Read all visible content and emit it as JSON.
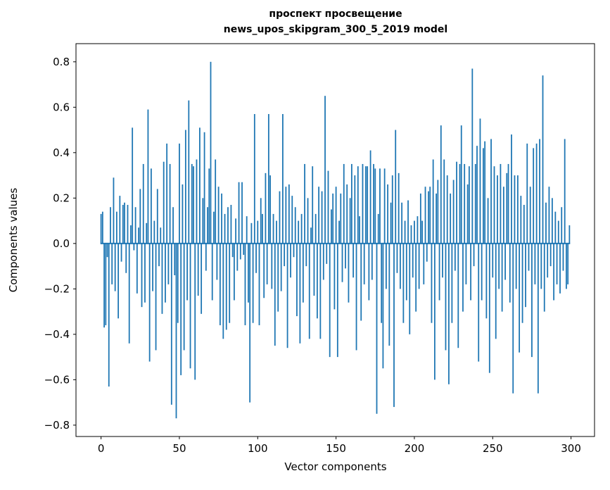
{
  "chart_data": {
    "type": "bar",
    "title": "проспект просвещение",
    "subtitle": "news_upos_skipgram_300_5_2019 model",
    "xlabel": "Vector components",
    "ylabel": "Components values",
    "bar_color": "#1f77b4",
    "spine_color": "#000000",
    "xlim": [
      -16,
      315
    ],
    "ylim": [
      -0.85,
      0.88
    ],
    "xticks": [
      0,
      50,
      100,
      150,
      200,
      250,
      300
    ],
    "yticks": [
      -0.8,
      -0.6,
      -0.4,
      -0.2,
      0.0,
      0.2,
      0.4,
      0.6,
      0.8
    ],
    "grid": false,
    "legend": "none",
    "x_start": 0,
    "x_step": 1,
    "values": [
      0.13,
      0.14,
      -0.37,
      -0.36,
      -0.06,
      -0.63,
      0.16,
      -0.18,
      0.29,
      -0.21,
      0.14,
      -0.33,
      0.21,
      -0.08,
      0.17,
      0.18,
      -0.13,
      0.17,
      -0.44,
      0.08,
      0.51,
      -0.03,
      0.16,
      -0.22,
      0.07,
      0.24,
      -0.28,
      0.35,
      -0.26,
      0.09,
      0.59,
      -0.52,
      0.33,
      -0.21,
      0.1,
      -0.47,
      0.24,
      -0.1,
      0.07,
      -0.31,
      0.36,
      -0.26,
      0.44,
      -0.18,
      0.35,
      -0.71,
      0.16,
      -0.14,
      -0.77,
      -0.35,
      0.44,
      -0.58,
      0.26,
      -0.47,
      0.5,
      -0.25,
      0.63,
      -0.55,
      0.35,
      0.34,
      -0.6,
      0.37,
      -0.23,
      0.51,
      -0.31,
      0.2,
      0.49,
      -0.12,
      0.16,
      0.33,
      0.8,
      -0.25,
      0.14,
      0.37,
      -0.16,
      0.25,
      -0.36,
      0.22,
      -0.42,
      0.13,
      -0.38,
      0.16,
      -0.35,
      0.17,
      -0.06,
      -0.25,
      0.11,
      -0.12,
      0.27,
      -0.07,
      0.27,
      -0.05,
      -0.36,
      0.12,
      -0.26,
      -0.7,
      0.09,
      -0.35,
      0.57,
      -0.13,
      0.1,
      -0.36,
      0.2,
      0.13,
      -0.24,
      0.31,
      -0.18,
      0.57,
      0.3,
      -0.2,
      0.13,
      -0.45,
      0.1,
      -0.3,
      0.23,
      -0.21,
      0.57,
      -0.1,
      0.25,
      -0.46,
      0.26,
      -0.15,
      0.21,
      -0.06,
      0.16,
      -0.32,
      0.1,
      -0.44,
      0.13,
      -0.26,
      0.35,
      -0.1,
      0.2,
      -0.42,
      0.07,
      0.34,
      -0.23,
      0.13,
      -0.33,
      0.25,
      -0.42,
      0.23,
      -0.16,
      0.65,
      -0.09,
      0.32,
      -0.5,
      0.15,
      0.22,
      -0.29,
      0.25,
      -0.5,
      0.1,
      0.22,
      -0.17,
      0.35,
      -0.11,
      0.26,
      -0.26,
      0.2,
      0.35,
      -0.15,
      0.3,
      -0.47,
      0.34,
      0.12,
      -0.34,
      0.35,
      -0.18,
      0.34,
      0.34,
      -0.25,
      0.41,
      -0.16,
      0.35,
      0.33,
      -0.75,
      0.13,
      0.33,
      -0.35,
      -0.55,
      0.33,
      -0.2,
      0.26,
      -0.45,
      0.18,
      0.3,
      -0.72,
      0.5,
      -0.13,
      0.31,
      -0.2,
      0.18,
      -0.35,
      0.1,
      -0.25,
      0.19,
      -0.4,
      0.08,
      -0.15,
      0.1,
      -0.3,
      0.12,
      -0.2,
      0.22,
      0.1,
      -0.18,
      0.25,
      -0.08,
      0.23,
      0.25,
      -0.35,
      0.37,
      -0.6,
      0.22,
      0.28,
      -0.25,
      0.52,
      -0.15,
      0.37,
      -0.47,
      0.3,
      -0.62,
      0.22,
      -0.35,
      0.28,
      -0.12,
      0.36,
      -0.46,
      0.35,
      0.52,
      -0.3,
      0.35,
      -0.18,
      0.26,
      0.34,
      -0.25,
      0.77,
      -0.1,
      0.35,
      0.43,
      -0.52,
      0.55,
      -0.25,
      0.42,
      0.45,
      -0.33,
      0.2,
      -0.57,
      0.46,
      -0.15,
      0.34,
      -0.42,
      0.3,
      -0.2,
      0.35,
      -0.3,
      0.25,
      -0.16,
      0.31,
      0.35,
      -0.26,
      0.48,
      -0.66,
      0.3,
      -0.2,
      0.3,
      -0.48,
      0.21,
      -0.35,
      0.17,
      -0.28,
      0.44,
      -0.12,
      0.25,
      -0.5,
      0.42,
      -0.18,
      0.44,
      -0.66,
      0.46,
      -0.2,
      0.74,
      -0.3,
      0.18,
      -0.15,
      0.25,
      -0.1,
      0.2,
      -0.25,
      0.14,
      -0.18,
      0.1,
      -0.22,
      0.16,
      -0.12,
      0.46,
      -0.2,
      -0.18,
      0.08
    ]
  }
}
